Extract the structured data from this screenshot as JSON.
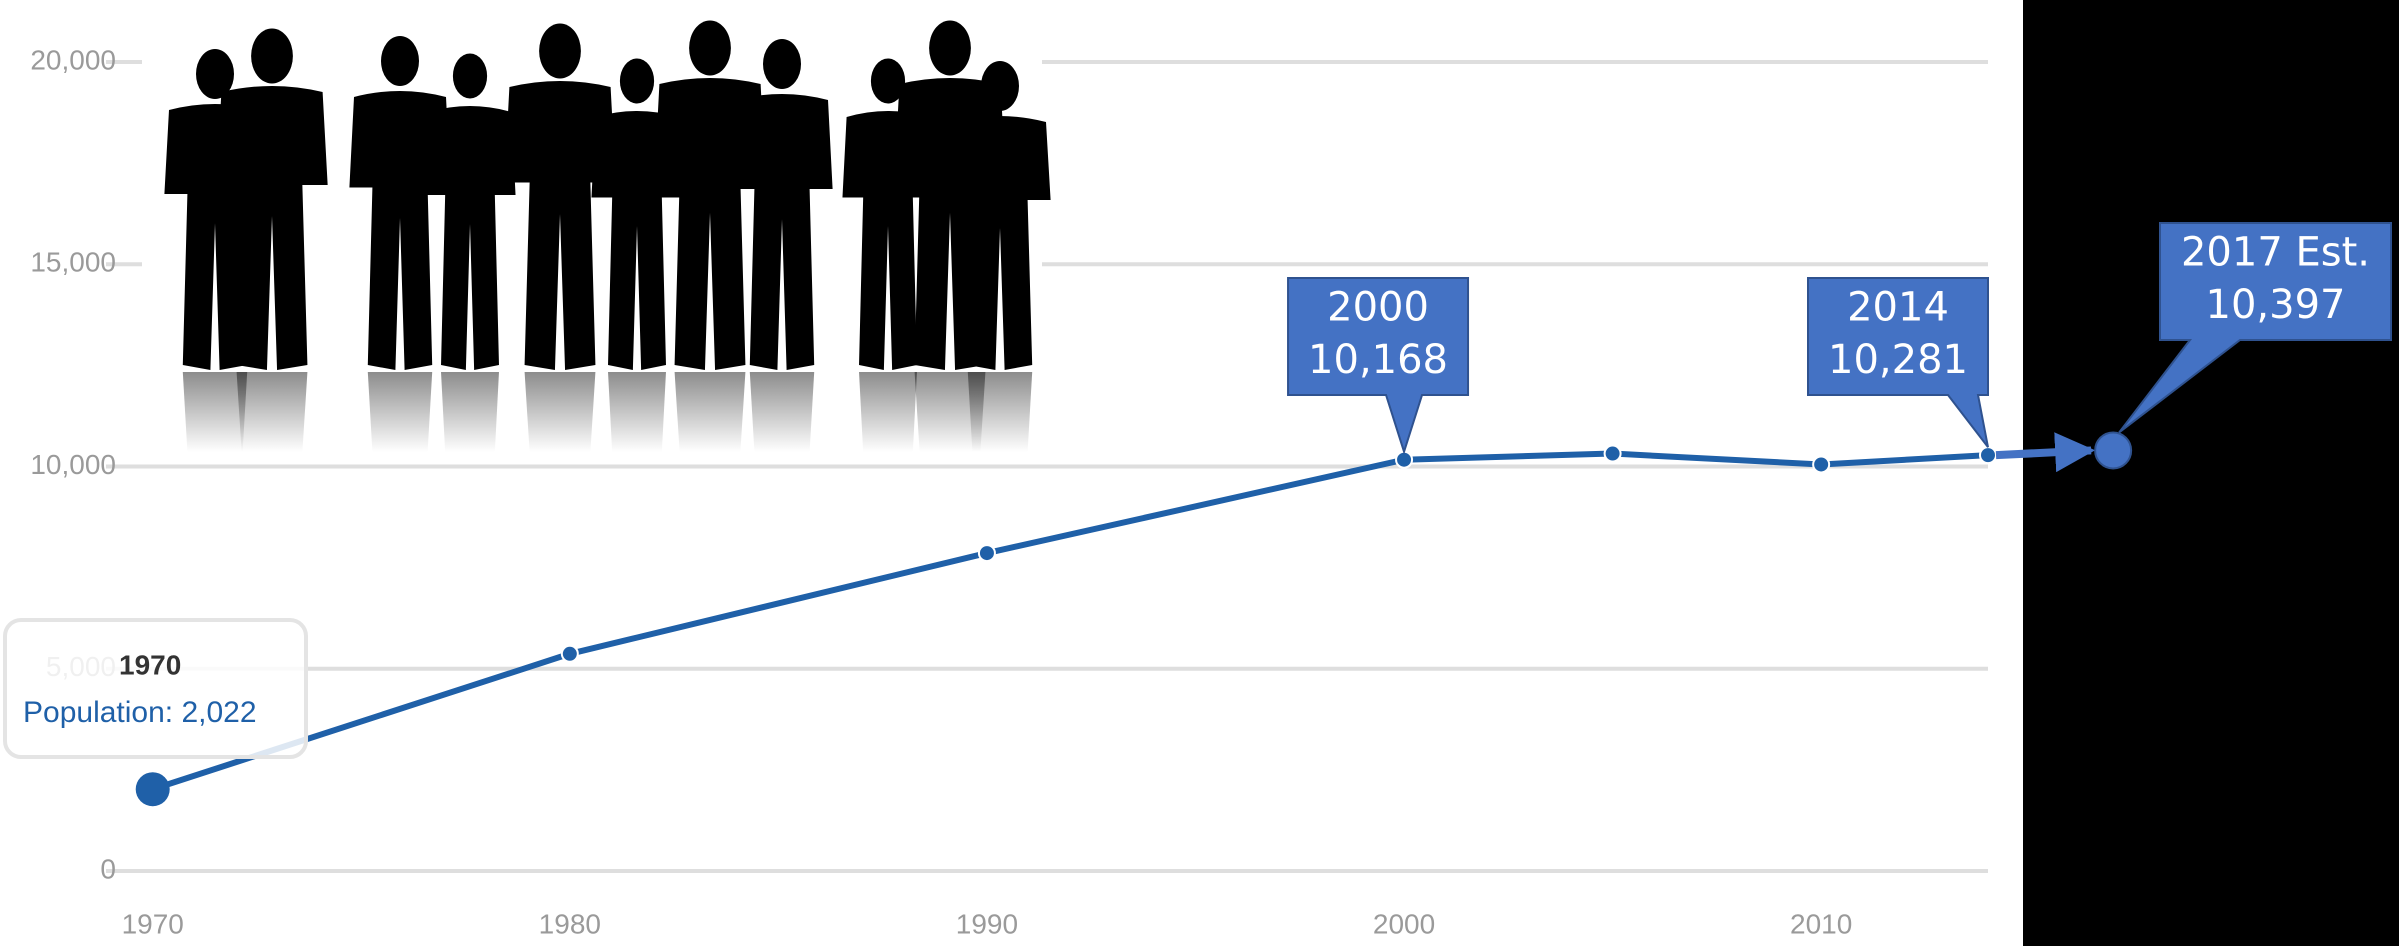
{
  "chart_data": {
    "type": "line",
    "x": [
      1970,
      1980,
      1990,
      2000,
      2005,
      2010,
      2014
    ],
    "series": [
      {
        "name": "Population",
        "color": "#1f60a8",
        "values": [
          2022,
          5370,
          7860,
          10168,
          10320,
          10050,
          10281
        ]
      }
    ],
    "xlim": [
      1969,
      2014
    ],
    "xticks": [
      1970,
      1980,
      1990,
      2000,
      2010
    ],
    "ylim": [
      0,
      20000
    ],
    "yticks": [
      0,
      {
        "value": 5000,
        "label": "5,000"
      },
      {
        "value": 10000,
        "label": "10,000"
      },
      {
        "value": 15000,
        "label": "15,000"
      },
      {
        "value": 20000,
        "label": "20,000"
      }
    ],
    "grid": true,
    "tooltip": {
      "title": "1970",
      "text": "Population: 2,022"
    },
    "annotations": [
      {
        "x": 2000,
        "y": 10168,
        "lines": [
          "2000",
          "10,168"
        ]
      },
      {
        "x": 2014,
        "y": 10281,
        "lines": [
          "2014",
          "10,281"
        ]
      }
    ],
    "estimate": {
      "x": 2017,
      "value": 10397,
      "color": "#4472c4",
      "lines": [
        "2017 Est.",
        "10,397"
      ]
    }
  }
}
